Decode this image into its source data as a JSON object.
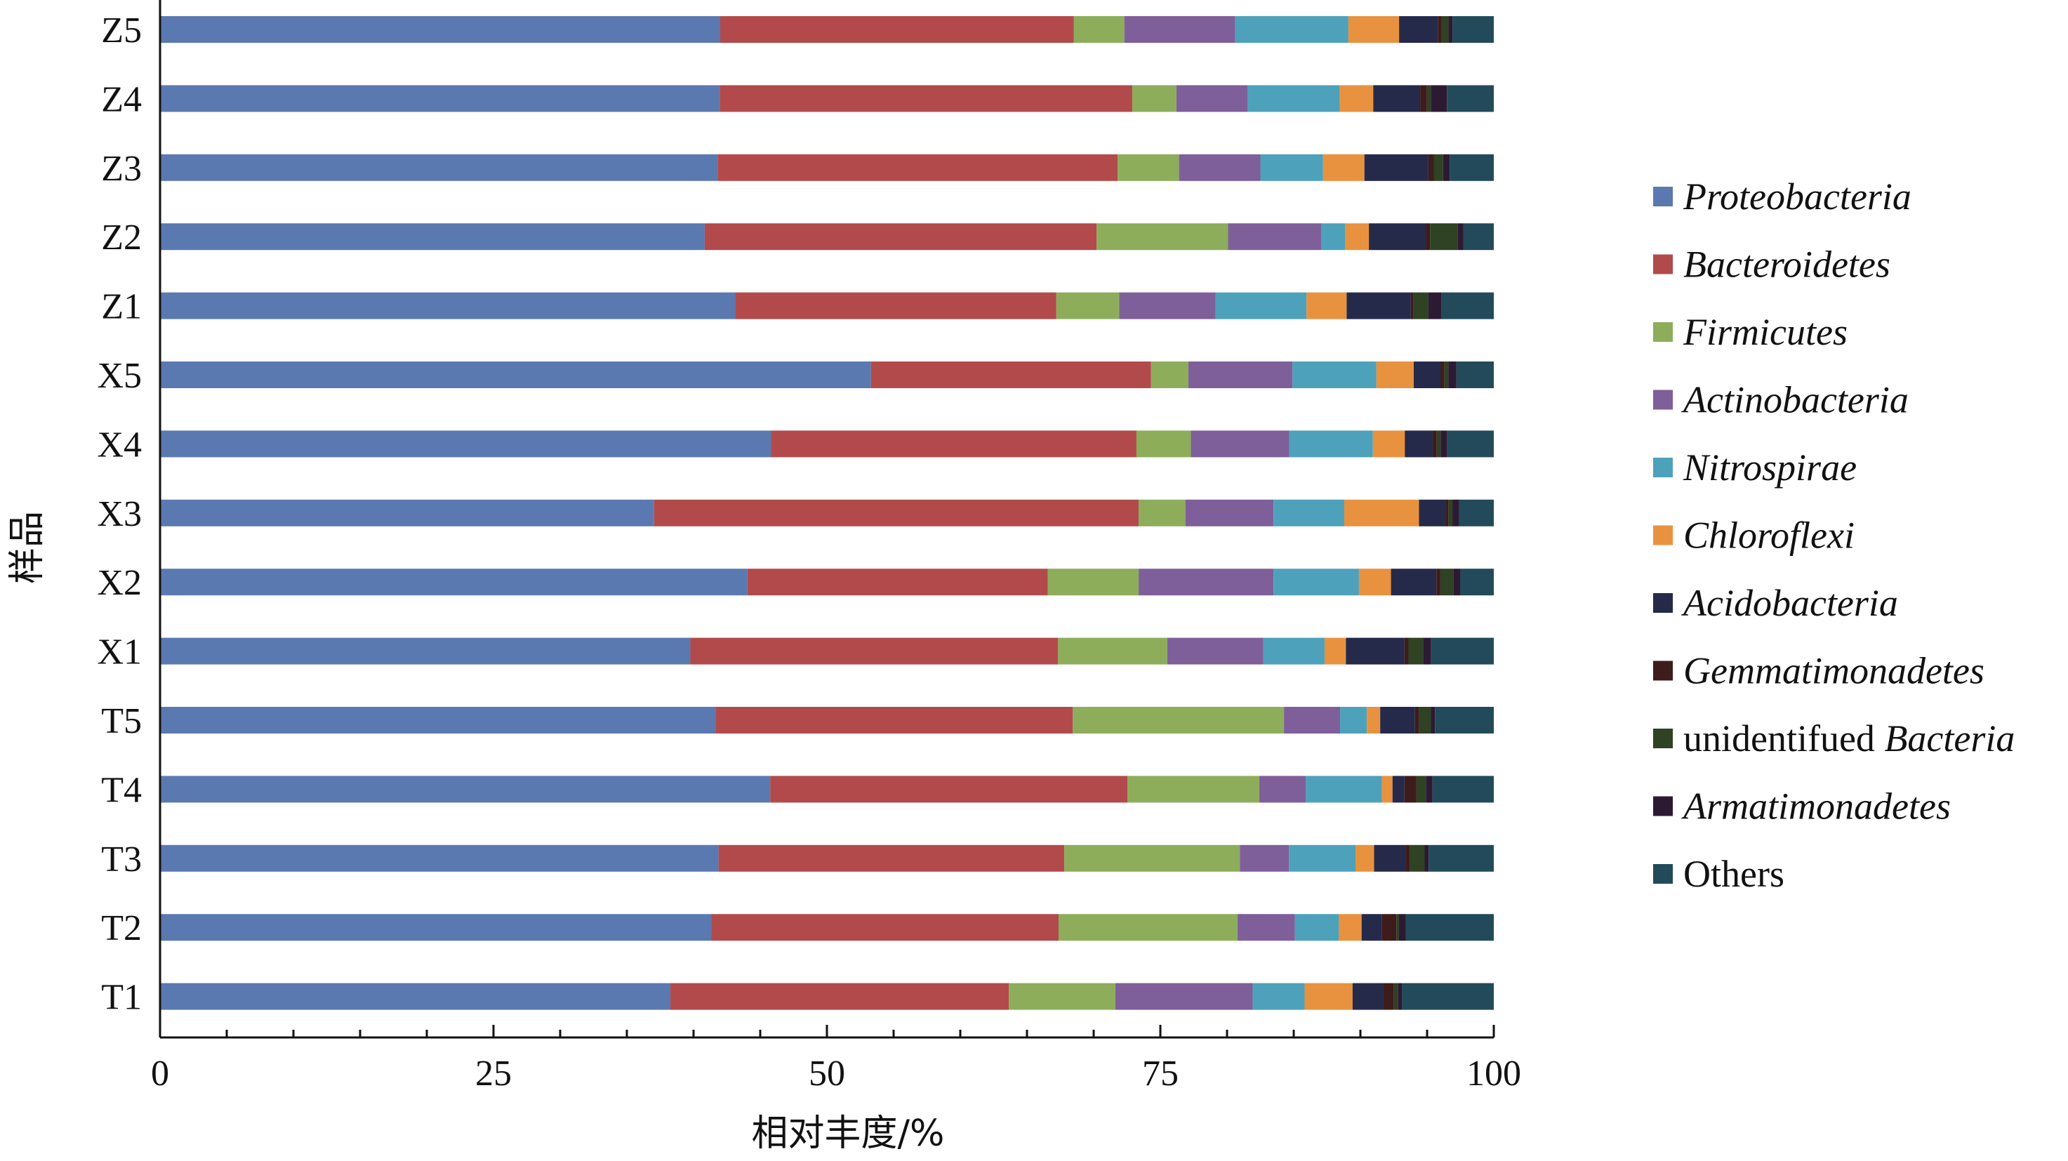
{
  "chart_data": {
    "type": "bar",
    "orientation": "horizontal",
    "stacked": true,
    "title": "",
    "xlabel": "相对丰度/%",
    "ylabel": "样品",
    "xlim": [
      0,
      100
    ],
    "xticks": [
      "0",
      "25",
      "50",
      "75",
      "100"
    ],
    "legend_position": "right",
    "grid": false,
    "categories": [
      "Z5",
      "Z4",
      "Z3",
      "Z2",
      "Z1",
      "X5",
      "X4",
      "X3",
      "X2",
      "X1",
      "T5",
      "T4",
      "T3",
      "T2",
      "T1"
    ],
    "series": [
      {
        "name": "Proteobacteria",
        "legend_prefix": "",
        "legend_italic": "Proteobacteria",
        "color": "#5b79b1",
        "values": [
          42.0,
          41.8,
          41.8,
          41.0,
          43.0,
          53.3,
          46.0,
          37.0,
          44.0,
          39.8,
          41.6,
          45.8,
          42.0,
          41.3,
          38.3
        ]
      },
      {
        "name": "Bacteroidetes",
        "legend_prefix": "",
        "legend_italic": "Bacteroidetes",
        "color": "#b24a4b",
        "values": [
          26.5,
          30.8,
          30.0,
          29.5,
          24.0,
          21.0,
          27.5,
          36.3,
          22.5,
          27.6,
          26.7,
          26.8,
          26.0,
          26.0,
          25.4
        ]
      },
      {
        "name": "Firmicutes",
        "legend_prefix": "",
        "legend_italic": "Firmicutes",
        "color": "#8dad5b",
        "values": [
          3.8,
          3.3,
          4.6,
          9.9,
          4.7,
          2.8,
          4.1,
          3.5,
          6.8,
          8.2,
          15.8,
          9.9,
          13.2,
          13.4,
          8.0
        ]
      },
      {
        "name": "Actinobacteria",
        "legend_prefix": "",
        "legend_italic": "Actinobacteria",
        "color": "#7e5f9a",
        "values": [
          8.3,
          5.3,
          6.1,
          7.0,
          7.2,
          7.8,
          7.4,
          6.6,
          10.1,
          7.2,
          4.2,
          3.5,
          3.7,
          4.3,
          10.3
        ]
      },
      {
        "name": "Nitrospirae",
        "legend_prefix": "",
        "legend_italic": "Nitrospirae",
        "color": "#4ea1bb",
        "values": [
          8.5,
          6.9,
          4.7,
          1.8,
          6.8,
          6.3,
          6.3,
          5.3,
          6.4,
          4.6,
          2.0,
          5.7,
          5.0,
          3.3,
          3.9
        ]
      },
      {
        "name": "Chloroflexi",
        "legend_prefix": "",
        "legend_italic": "Chloroflexi",
        "color": "#e8923f",
        "values": [
          3.8,
          2.5,
          3.1,
          1.8,
          3.0,
          2.8,
          2.4,
          5.6,
          2.4,
          1.6,
          1.0,
          0.8,
          1.4,
          1.7,
          3.6
        ]
      },
      {
        "name": "Acidobacteria",
        "legend_prefix": "",
        "legend_italic": "Acidobacteria",
        "color": "#262a4a",
        "values": [
          2.9,
          3.5,
          4.8,
          4.3,
          4.8,
          2.0,
          2.1,
          2.0,
          3.4,
          4.4,
          2.6,
          0.9,
          2.4,
          1.5,
          2.3
        ]
      },
      {
        "name": "Gemmatimonadetes",
        "legend_prefix": "",
        "legend_italic": "Gemmatimonadetes",
        "color": "#3e1c1c",
        "values": [
          0.3,
          0.5,
          0.4,
          0.3,
          0.2,
          0.3,
          0.3,
          0.2,
          0.3,
          0.3,
          0.3,
          0.9,
          0.3,
          1.1,
          0.8
        ]
      },
      {
        "name": "unidentifued Bacteria",
        "legend_prefix": "unidentifued ",
        "legend_italic": "Bacteria",
        "color": "#2f4224",
        "values": [
          0.5,
          0.3,
          0.7,
          2.1,
          1.1,
          0.3,
          0.3,
          0.3,
          1.0,
          1.1,
          0.9,
          0.7,
          1.1,
          0.2,
          0.3
        ]
      },
      {
        "name": "Armatimonadetes",
        "legend_prefix": "",
        "legend_italic": "Armatimonadetes",
        "color": "#2c1a33",
        "values": [
          0.3,
          1.2,
          0.5,
          0.4,
          1.0,
          0.6,
          0.5,
          0.5,
          0.5,
          0.6,
          0.3,
          0.5,
          0.3,
          0.5,
          0.3
        ]
      },
      {
        "name": "Others",
        "legend_prefix": "Others",
        "legend_italic": "",
        "color": "#234a5a",
        "values": [
          3.1,
          3.5,
          3.3,
          2.3,
          3.9,
          2.8,
          3.5,
          2.6,
          2.5,
          4.7,
          4.4,
          4.6,
          4.9,
          6.6,
          6.9
        ]
      }
    ]
  }
}
